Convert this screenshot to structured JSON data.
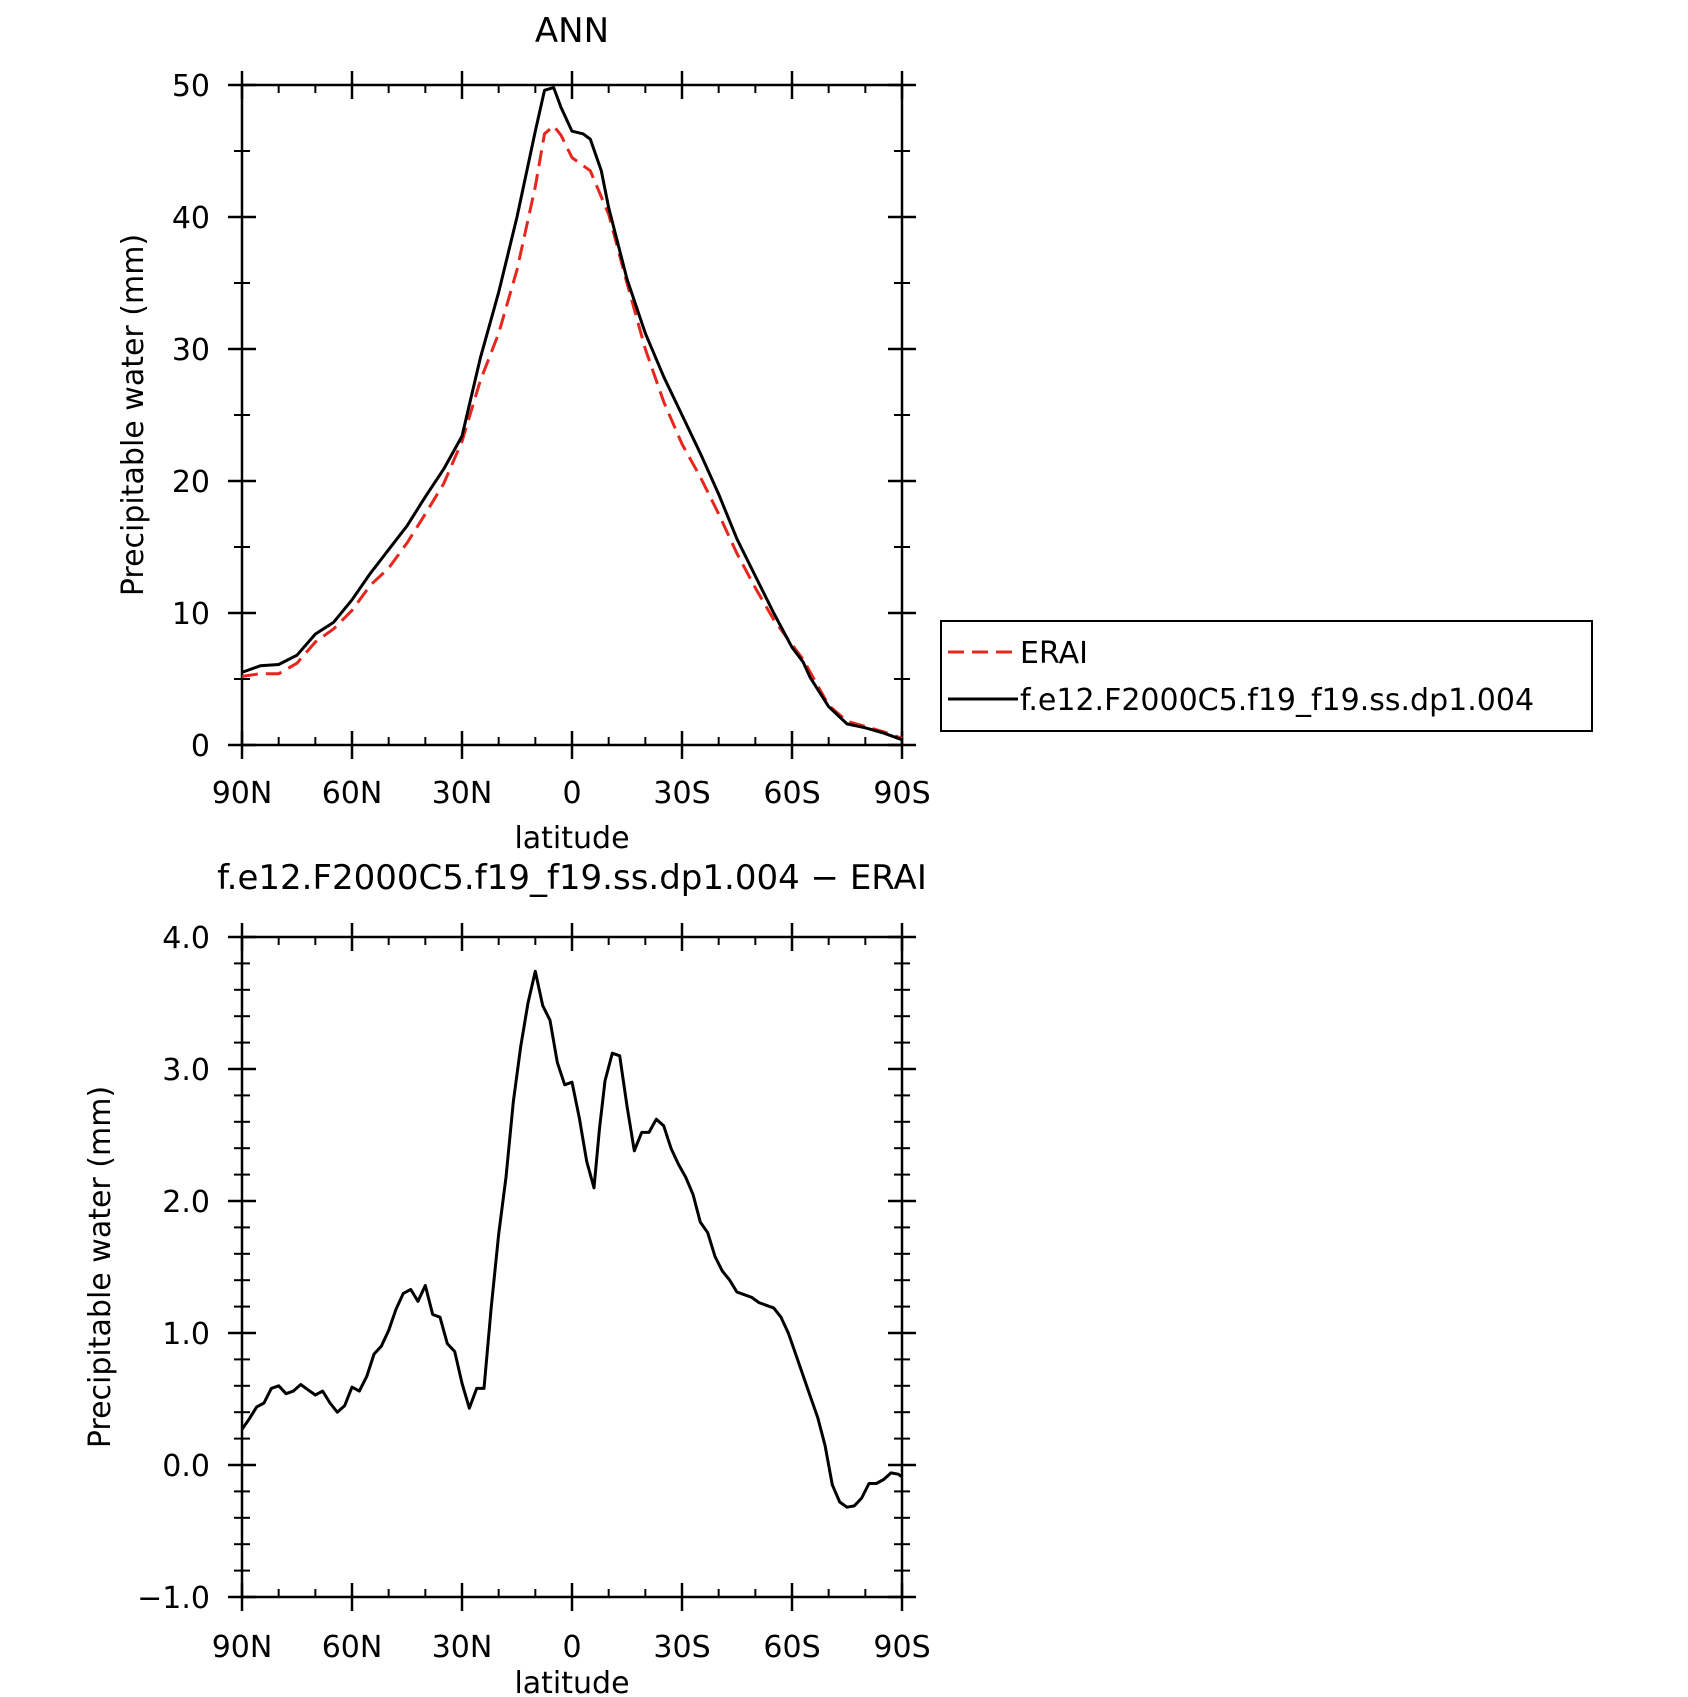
{
  "chart_data": [
    {
      "type": "line",
      "title": "ANN",
      "xlabel": "latitude",
      "ylabel": "Precipitable water (mm)",
      "xlim": [
        90,
        -90
      ],
      "ylim": [
        0,
        50
      ],
      "x_ticks": [
        90,
        60,
        30,
        0,
        -30,
        -60,
        -90
      ],
      "x_tick_labels": [
        "90N",
        "60N",
        "30N",
        "0",
        "30S",
        "60S",
        "90S"
      ],
      "y_ticks": [
        0,
        10,
        20,
        30,
        40,
        50
      ],
      "y_tick_labels": [
        "0",
        "10",
        "20",
        "30",
        "40",
        "50"
      ],
      "grid": false,
      "legend_position": "right",
      "series": [
        {
          "name": "ERAI",
          "color": "#e8261d",
          "dash": "dashed",
          "x": [
            90,
            85,
            80,
            75,
            70,
            65,
            60,
            55,
            50,
            45,
            40,
            35,
            30,
            25,
            20,
            15,
            10,
            7.5,
            5,
            3,
            0,
            -5,
            -10,
            -15,
            -20,
            -25,
            -30,
            -35,
            -40,
            -45,
            -50,
            -55,
            -60,
            -63,
            -65,
            -70,
            -75,
            -80,
            -85,
            -90
          ],
          "y": [
            5.2,
            5.4,
            5.4,
            6.2,
            7.8,
            8.8,
            10.2,
            12.1,
            13.4,
            15.3,
            17.5,
            19.8,
            23.0,
            27.6,
            31.2,
            36.0,
            42.3,
            46.3,
            46.9,
            46.2,
            44.5,
            43.5,
            40.2,
            35.0,
            30.0,
            26.0,
            22.8,
            20.3,
            17.5,
            14.5,
            11.9,
            9.5,
            7.6,
            6.5,
            5.5,
            3.0,
            1.8,
            1.4,
            1.0,
            0.5
          ]
        },
        {
          "name": "f.e12.F2000C5.f19_f19.ss.dp1.004",
          "color": "#000000",
          "dash": "solid",
          "x": [
            90,
            85,
            80,
            75,
            70,
            65,
            60,
            55,
            50,
            45,
            40,
            35,
            30,
            25,
            20,
            15,
            10,
            7.5,
            5,
            3,
            0,
            -3,
            -5,
            -8,
            -10,
            -15,
            -20,
            -25,
            -30,
            -35,
            -40,
            -45,
            -50,
            -55,
            -60,
            -63,
            -65,
            -70,
            -75,
            -80,
            -85,
            -90
          ],
          "y": [
            5.5,
            6.0,
            6.1,
            6.8,
            8.4,
            9.3,
            11.0,
            13.0,
            14.8,
            16.6,
            18.8,
            20.9,
            23.4,
            29.3,
            34.3,
            40.0,
            46.5,
            49.6,
            49.8,
            48.3,
            46.5,
            46.3,
            45.9,
            43.5,
            40.7,
            35.3,
            31.2,
            27.9,
            25.0,
            22.1,
            19.0,
            15.6,
            12.8,
            10.0,
            7.4,
            6.3,
            5.1,
            2.9,
            1.6,
            1.3,
            0.9,
            0.4
          ]
        }
      ]
    },
    {
      "type": "line",
      "title": "f.e12.F2000C5.f19_f19.ss.dp1.004 − ERAI",
      "xlabel": "latitude",
      "ylabel": "Precipitable water (mm)",
      "xlim": [
        90,
        -90
      ],
      "ylim": [
        -1.0,
        4.0
      ],
      "x_ticks": [
        90,
        60,
        30,
        0,
        -30,
        -60,
        -90
      ],
      "x_tick_labels": [
        "90N",
        "60N",
        "30N",
        "0",
        "30S",
        "60S",
        "90S"
      ],
      "y_ticks": [
        -1.0,
        0.0,
        1.0,
        2.0,
        3.0,
        4.0
      ],
      "y_tick_labels": [
        "−1.0",
        "0.0",
        "1.0",
        "2.0",
        "3.0",
        "4.0"
      ],
      "grid": false,
      "series": [
        {
          "color": "#000000",
          "dash": "solid",
          "x": [
            90,
            88,
            86,
            84,
            82,
            80,
            78,
            76,
            74,
            72,
            70,
            68,
            66,
            64,
            62,
            60,
            58,
            56,
            54,
            52,
            50,
            48,
            46,
            44,
            42,
            40,
            38,
            36,
            34,
            32,
            30,
            28,
            26,
            24,
            22,
            20,
            18,
            16,
            14,
            12,
            10,
            8,
            6,
            4,
            2,
            0,
            -2,
            -4,
            -6,
            -7.5,
            -9,
            -11,
            -13,
            -15,
            -17,
            -19,
            -21,
            -23,
            -25,
            -27,
            -29,
            -31,
            -33,
            -35,
            -37,
            -39,
            -41,
            -43,
            -45,
            -47,
            -49,
            -51,
            -53,
            -55,
            -57,
            -59,
            -61,
            -63,
            -65,
            -67,
            -69,
            -71,
            -73,
            -75,
            -77,
            -79,
            -81,
            -83,
            -85,
            -87,
            -89,
            -90
          ],
          "y": [
            0.27,
            0.35,
            0.44,
            0.47,
            0.58,
            0.6,
            0.54,
            0.56,
            0.61,
            0.57,
            0.53,
            0.56,
            0.47,
            0.4,
            0.45,
            0.59,
            0.56,
            0.67,
            0.84,
            0.9,
            1.02,
            1.18,
            1.3,
            1.33,
            1.24,
            1.36,
            1.14,
            1.12,
            0.92,
            0.86,
            0.62,
            0.43,
            0.58,
            0.58,
            1.2,
            1.75,
            2.18,
            2.75,
            3.17,
            3.5,
            3.74,
            3.48,
            3.37,
            3.05,
            2.88,
            2.9,
            2.63,
            2.3,
            2.1,
            2.55,
            2.91,
            3.12,
            3.1,
            2.72,
            2.38,
            2.52,
            2.52,
            2.62,
            2.57,
            2.4,
            2.28,
            2.18,
            2.05,
            1.84,
            1.76,
            1.58,
            1.47,
            1.4,
            1.31,
            1.29,
            1.27,
            1.23,
            1.21,
            1.19,
            1.12,
            1.0,
            0.84,
            0.68,
            0.52,
            0.36,
            0.15,
            -0.15,
            -0.28,
            -0.32,
            -0.31,
            -0.25,
            -0.14,
            -0.14,
            -0.11,
            -0.06,
            -0.07,
            -0.09
          ]
        }
      ]
    }
  ],
  "legend": {
    "items": [
      {
        "label": "ERAI",
        "color": "#e8261d",
        "dash": "dashed"
      },
      {
        "label": "f.e12.F2000C5.f19_f19.ss.dp1.004",
        "color": "#000000",
        "dash": "solid"
      }
    ]
  }
}
